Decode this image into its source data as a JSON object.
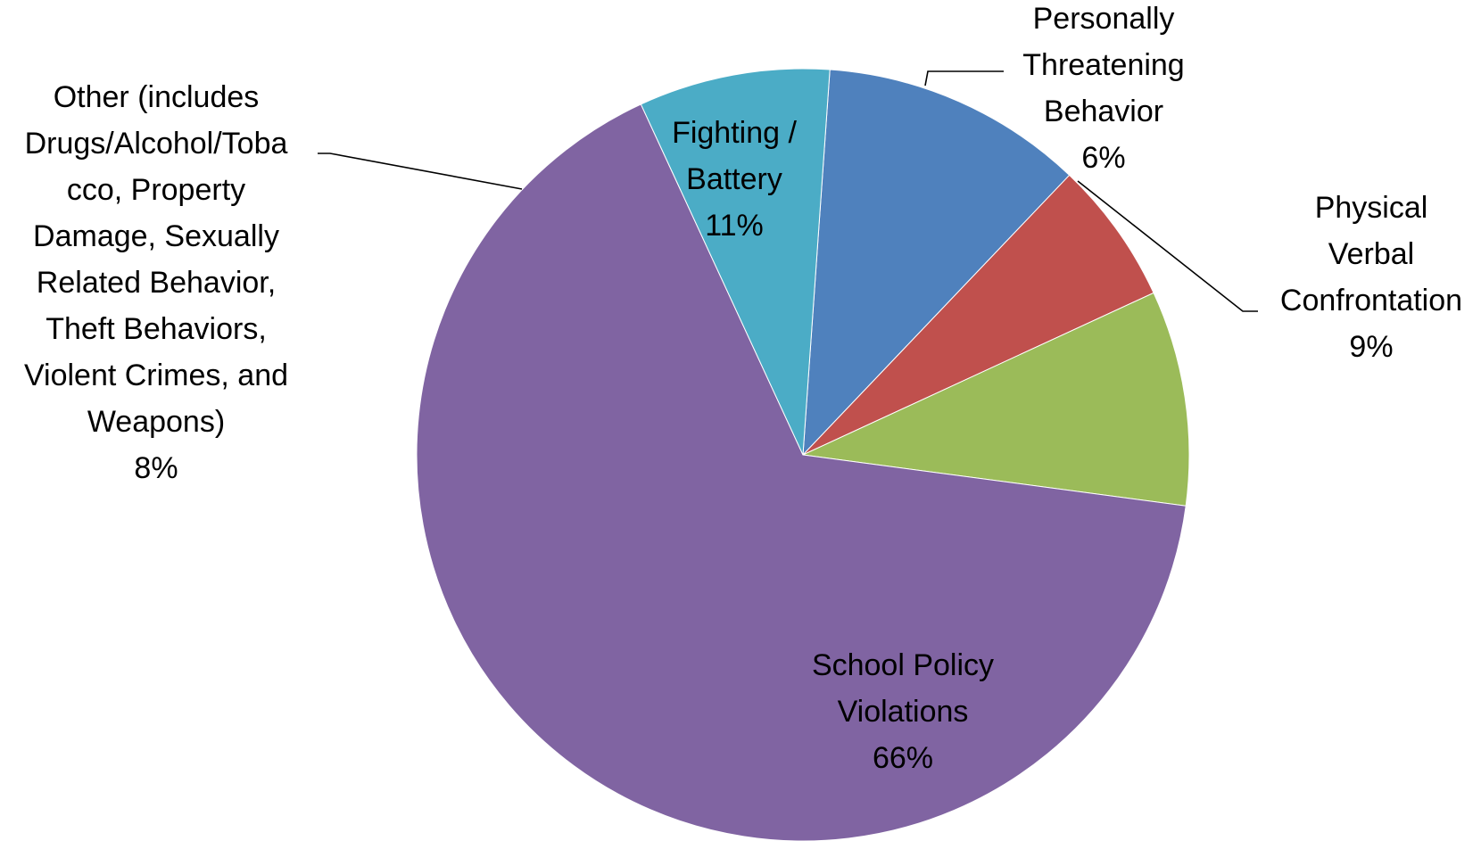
{
  "chart_data": {
    "type": "pie",
    "title": "",
    "start_angle_deg": 86,
    "direction": "clockwise",
    "slices": [
      {
        "label_lines": [
          "Fighting /",
          "Battery"
        ],
        "value_label": "11%",
        "value": 11,
        "color": "#4F81BD"
      },
      {
        "label_lines": [
          "Personally",
          "Threatening",
          "Behavior"
        ],
        "value_label": "6%",
        "value": 6,
        "color": "#C0504D"
      },
      {
        "label_lines": [
          "Physical",
          "Verbal",
          "Confrontation"
        ],
        "value_label": "9%",
        "value": 9,
        "color": "#9BBB59"
      },
      {
        "label_lines": [
          "School Policy",
          "Violations"
        ],
        "value_label": "66%",
        "value": 66,
        "color": "#8064A2"
      },
      {
        "label_lines": [
          "Other (includes",
          "Drugs/Alcohol/Toba",
          "cco,  Property",
          "Damage, Sexually",
          "Related Behavior,",
          "Theft Behaviors,",
          "Violent Crimes, and",
          "Weapons)"
        ],
        "value_label": "8%",
        "value": 8,
        "color": "#4BACC6"
      }
    ]
  }
}
